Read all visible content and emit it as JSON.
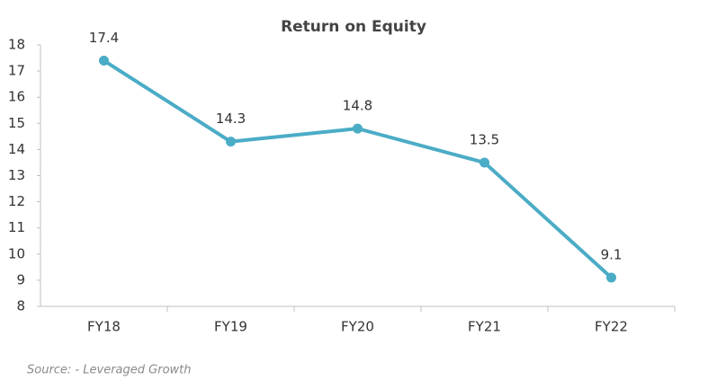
{
  "chart_data": {
    "type": "line",
    "title": "Return on Equity",
    "categories": [
      "FY18",
      "FY19",
      "FY20",
      "FY21",
      "FY22"
    ],
    "series": [
      {
        "name": "Return on Equity",
        "color": "#4bacc6",
        "values": [
          17.4,
          14.3,
          14.8,
          13.5,
          9.1
        ]
      }
    ],
    "ylim": [
      8,
      18
    ],
    "yticks": [
      8,
      9,
      10,
      11,
      12,
      13,
      14,
      15,
      16,
      17,
      18
    ],
    "grid": false,
    "data_labels": true,
    "source": "Source: - Leveraged Growth"
  }
}
